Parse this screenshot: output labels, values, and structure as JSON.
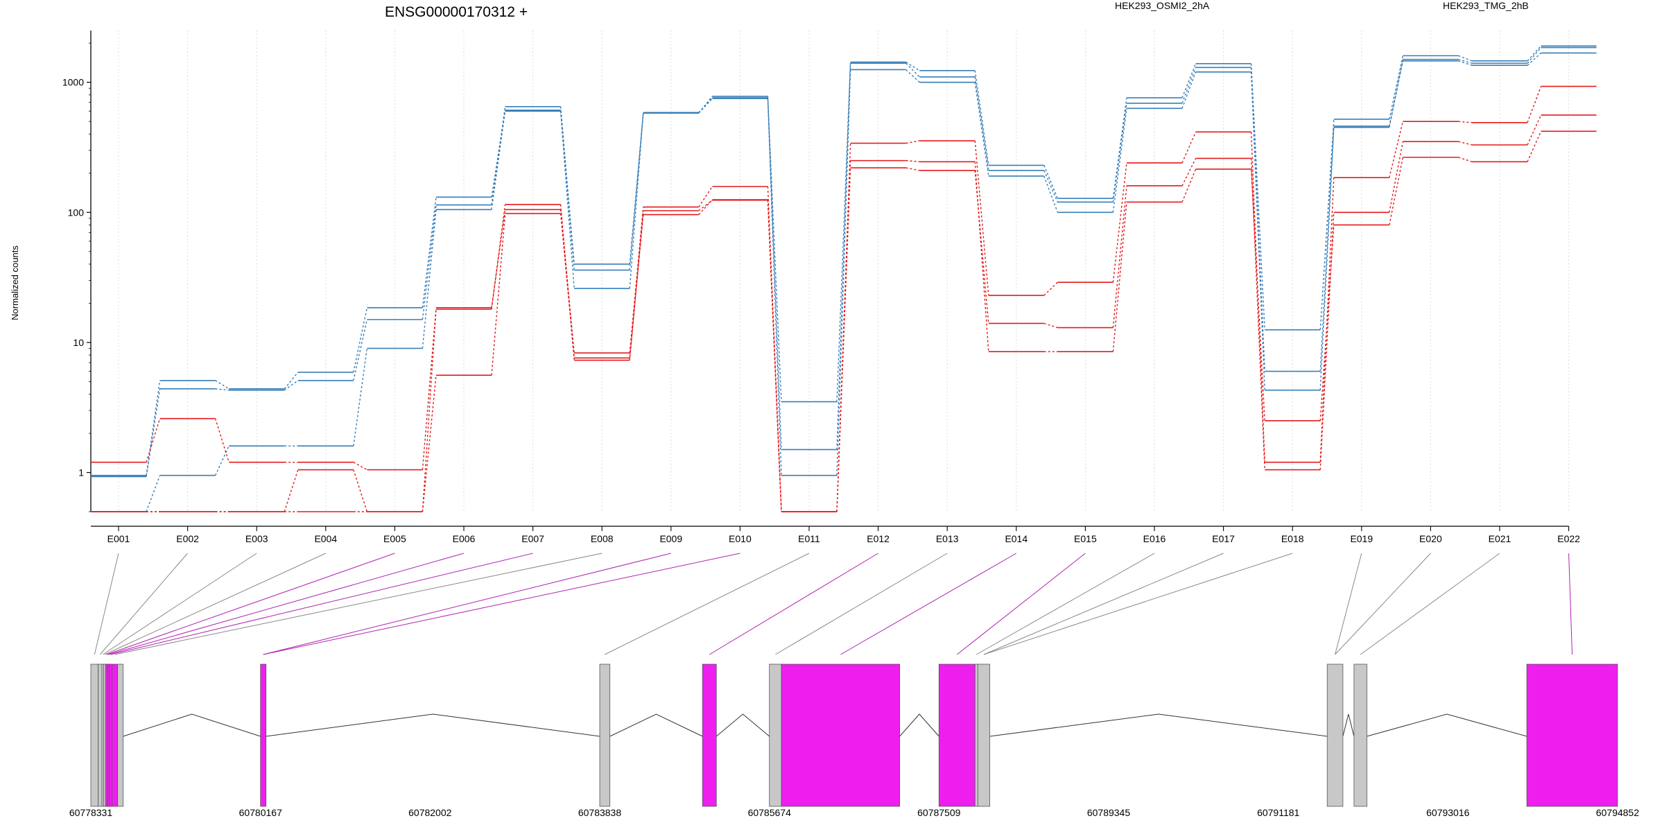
{
  "chart_data": {
    "type": "line",
    "title": "ENSG00000170312 +",
    "ylabel": "Normalized counts",
    "y_scale": "log",
    "ylim": [
      0.5,
      2500
    ],
    "y_ticks": [
      1,
      10,
      100,
      1000
    ],
    "y_tick_labels": [
      "1",
      "10",
      "100",
      "1000"
    ],
    "grid": "vertical dotted lines at exon positions",
    "legend_position": "top",
    "categories": [
      "E001",
      "E002",
      "E003",
      "E004",
      "E005",
      "E006",
      "E007",
      "E008",
      "E009",
      "E010",
      "E011",
      "E012",
      "E013",
      "E014",
      "E015",
      "E016",
      "E017",
      "E018",
      "E019",
      "E020",
      "E021",
      "E022"
    ],
    "groups": [
      {
        "name": "HEK293_OSMI2_2hA",
        "color": "#e41a1c"
      },
      {
        "name": "HEK293_TMG_2hB",
        "color": "#377eb8"
      }
    ],
    "series": [
      {
        "group": 1,
        "values": [
          0.93,
          4.4,
          4.3,
          5.1,
          15,
          114,
          650,
          40,
          580,
          780,
          1.5,
          1400,
          1100,
          210,
          120,
          690,
          1300,
          6,
          460,
          1500,
          1400,
          1850
        ]
      },
      {
        "group": 1,
        "values": [
          0.95,
          5.1,
          4.4,
          5.9,
          18.5,
          131,
          610,
          36,
          585,
          760,
          3.5,
          1430,
          1230,
          230,
          128,
          760,
          1390,
          12.5,
          520,
          1600,
          1460,
          1900
        ]
      },
      {
        "group": 1,
        "values": [
          0.5,
          0.95,
          1.6,
          1.6,
          9,
          105,
          600,
          26,
          580,
          750,
          0.95,
          1250,
          1000,
          190,
          100,
          630,
          1200,
          4.3,
          450,
          1460,
          1350,
          1680
        ]
      },
      {
        "group": 0,
        "values": [
          1.2,
          2.6,
          1.2,
          1.2,
          1.05,
          18.5,
          105,
          8.3,
          110,
          158,
          0.5,
          340,
          355,
          23,
          29,
          240,
          415,
          1.2,
          185,
          500,
          490,
          930
        ]
      },
      {
        "group": 0,
        "values": [
          0.5,
          0.5,
          0.5,
          1.05,
          0.5,
          5.6,
          98,
          7.6,
          96,
          125,
          0.5,
          220,
          210,
          14,
          13,
          160,
          260,
          1.05,
          100,
          350,
          330,
          560
        ]
      },
      {
        "group": 0,
        "values": [
          0.5,
          0.5,
          0.5,
          0.5,
          0.5,
          18,
          115,
          7.3,
          103,
          124,
          0.5,
          250,
          245,
          8.5,
          8.5,
          120,
          215,
          2.5,
          80,
          265,
          245,
          420
        ]
      }
    ],
    "genomic_axis": {
      "ticks": [
        60778331,
        60780167,
        60782002,
        60783838,
        60785674,
        60787509,
        60789345,
        60791181,
        60793016,
        60794852
      ],
      "range": [
        60778331,
        60794852
      ],
      "exon_colors": {
        "plain": "#c8c8c8",
        "highlighted": "#ee1fee",
        "connector_plain": "#888888",
        "connector_highlighted": "#b020b0"
      },
      "exons": [
        {
          "id": "E001",
          "start": 60778331,
          "end": 60778411,
          "highlight": false
        },
        {
          "id": "E002",
          "start": 60778411,
          "end": 60778451,
          "highlight": false
        },
        {
          "id": "E003",
          "start": 60778451,
          "end": 60778471,
          "highlight": false
        },
        {
          "id": "E004",
          "start": 60778471,
          "end": 60778491,
          "highlight": false
        },
        {
          "id": "E005",
          "start": 60778491,
          "end": 60778511,
          "highlight": true
        },
        {
          "id": "E006",
          "start": 60778511,
          "end": 60778531,
          "highlight": true
        },
        {
          "id": "E007",
          "start": 60778531,
          "end": 60778561,
          "highlight": true
        },
        {
          "id": "E008",
          "start": 60778561,
          "end": 60778621,
          "highlight": true
        },
        {
          "id": "E009",
          "start": 60778621,
          "end": 60778681,
          "highlight": false
        },
        {
          "id": "E010",
          "start": 60780167,
          "end": 60780227,
          "highlight": true
        },
        {
          "id": "E011",
          "start": 60783838,
          "end": 60783948,
          "highlight": false
        },
        {
          "id": "E012",
          "start": 60784950,
          "end": 60785100,
          "highlight": true
        },
        {
          "id": "E013",
          "start": 60785674,
          "end": 60785804,
          "highlight": false
        },
        {
          "id": "E014",
          "start": 60785804,
          "end": 60787084,
          "highlight": true
        },
        {
          "id": "E015",
          "start": 60787509,
          "end": 60787899,
          "highlight": true
        },
        {
          "id": "E016",
          "start": 60787899,
          "end": 60787929,
          "highlight": false
        },
        {
          "id": "E017",
          "start": 60787929,
          "end": 60788059,
          "highlight": false
        },
        {
          "id": "E018",
          "start": 60791710,
          "end": 60791880,
          "highlight": false
        },
        {
          "id": "E019",
          "start": 60792000,
          "end": 60792140,
          "highlight": false
        },
        {
          "id": "E020",
          "start": 60793870,
          "end": 60794852,
          "highlight": true
        }
      ],
      "connectors": [
        {
          "exon": "E001",
          "to": "E001",
          "highlight": false
        },
        {
          "exon": "E002",
          "to": "E002",
          "highlight": false
        },
        {
          "exon": "E003",
          "to": "E003",
          "highlight": false
        },
        {
          "exon": "E004",
          "to": "E004",
          "highlight": false
        },
        {
          "exon": "E005",
          "to": "E005",
          "highlight": true
        },
        {
          "exon": "E006",
          "to": "E006",
          "highlight": true
        },
        {
          "exon": "E007",
          "to": "E007",
          "highlight": true
        },
        {
          "exon": "E008",
          "to": "E008",
          "highlight": false
        },
        {
          "exon": "E009",
          "to": "E010",
          "highlight": true
        },
        {
          "exon": "E010",
          "to": "E010",
          "highlight": true
        },
        {
          "exon": "E011",
          "to": "E011",
          "highlight": false
        },
        {
          "exon": "E012",
          "to": "E012",
          "highlight": true
        },
        {
          "exon": "E013",
          "to": "E013",
          "highlight": false
        },
        {
          "exon": "E014",
          "to": "E014",
          "highlight": true
        },
        {
          "exon": "E015",
          "to": "E015",
          "highlight": true
        },
        {
          "exon": "E016",
          "to": "E016",
          "highlight": false
        },
        {
          "exon": "E017",
          "to": "E017",
          "highlight": false
        },
        {
          "exon": "E018",
          "to": "E017",
          "highlight": false
        },
        {
          "exon": "E019",
          "to": "E018",
          "highlight": false
        },
        {
          "exon": "E020",
          "to": "E018",
          "highlight": false
        },
        {
          "exon": "E021",
          "to": "E019",
          "highlight": false
        },
        {
          "exon": "E022",
          "to": "E020",
          "highlight": true
        }
      ]
    }
  }
}
